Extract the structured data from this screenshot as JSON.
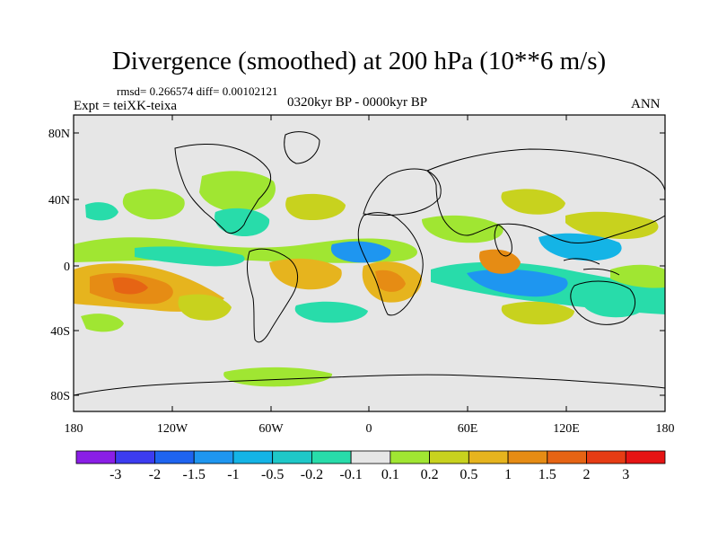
{
  "title": "Divergence (smoothed) at 200 hPa (10**6 m/s)",
  "stats": "rmsd= 0.266574 diff= 0.00102121",
  "experiment": "Expt = teiXK-teixa",
  "period": "0320kyr BP - 0000kyr BP",
  "season": "ANN",
  "map": {
    "lat_ticks": [
      "80N",
      "40N",
      "0",
      "40S",
      "80S"
    ],
    "lon_ticks": [
      "180",
      "120W",
      "60W",
      "0",
      "60E",
      "120E",
      "180"
    ],
    "background_color": "#e6e6e6"
  },
  "colorbar": {
    "labels": [
      "-3",
      "-2",
      "-1.5",
      "-1",
      "-0.5",
      "-0.2",
      "-0.1",
      "0.1",
      "0.2",
      "0.5",
      "1",
      "1.5",
      "2",
      "3"
    ],
    "colors": [
      "#8a1ee6",
      "#3c3cf0",
      "#1e64f0",
      "#1e96f0",
      "#14b4e6",
      "#1ec8c8",
      "#28dcaa",
      "#e6e6e6",
      "#a0e632",
      "#c8d21e",
      "#e6b41e",
      "#e68c14",
      "#e66414",
      "#e63c14",
      "#e61414"
    ]
  }
}
